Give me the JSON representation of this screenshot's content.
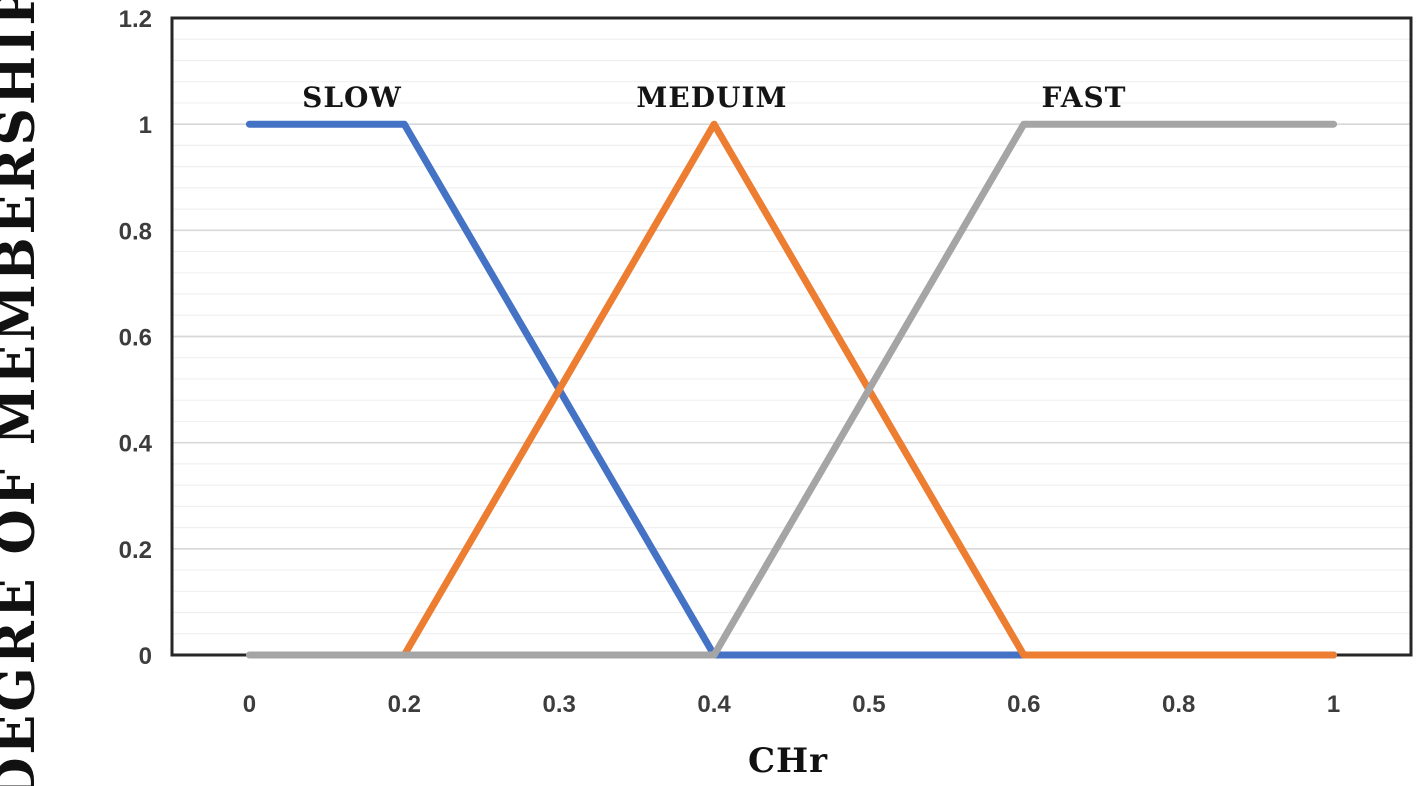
{
  "chart_data": {
    "type": "line",
    "title": "",
    "xlabel": "CHr",
    "ylabel": "DEGRE OF MEMBERSHIP",
    "categories": [
      "0",
      "0.2",
      "0.3",
      "0.4",
      "0.5",
      "0.6",
      "0.8",
      "1"
    ],
    "yticks": [
      "0",
      "0.2",
      "0.4",
      "0.6",
      "0.8",
      "1",
      "1.2"
    ],
    "ylim": [
      0,
      1.2
    ],
    "y_major_unit": 0.2,
    "y_minor_unit": 0.04,
    "grid": "horizontal major + minor, no vertical gridlines",
    "legend_position": "none (inline data labels above lines)",
    "series": [
      {
        "name": "SLOW",
        "color": "#4472C4",
        "values": [
          1,
          1,
          0.5,
          0,
          0,
          0,
          0,
          0
        ]
      },
      {
        "name": "MEDUIM",
        "color": "#ED7D31",
        "values": [
          null,
          0,
          0.5,
          1,
          0.5,
          0,
          0,
          0
        ]
      },
      {
        "name": "FAST",
        "color": "#A5A5A5",
        "values": [
          0,
          0,
          0,
          0,
          0.5,
          1,
          1,
          1
        ]
      }
    ]
  },
  "colors": {
    "background": "#ffffff",
    "plot_border": "#262626",
    "grid_major": "#d8d8d8",
    "grid_minor": "#f0f0f0",
    "tick_label": "#3d3d3d",
    "title_text": "#111111"
  }
}
